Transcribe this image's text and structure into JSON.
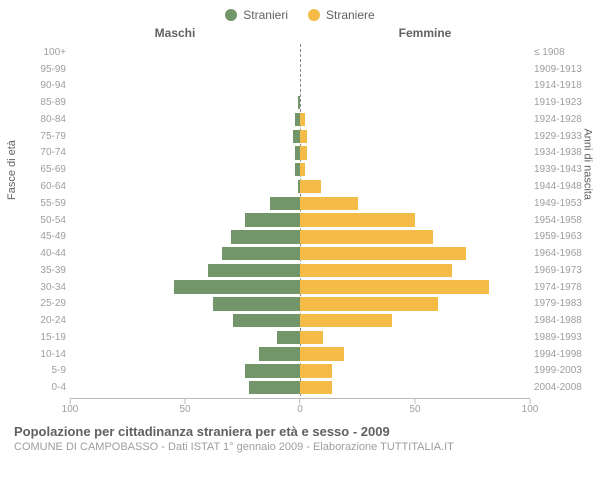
{
  "title": "Popolazione per cittadinanza straniera per età e sesso - 2009",
  "subtitle": "COMUNE DI CAMPOBASSO - Dati ISTAT 1° gennaio 2009 - Elaborazione TUTTITALIA.IT",
  "legend": {
    "male": {
      "label": "Stranieri",
      "color": "#72966a"
    },
    "female": {
      "label": "Straniere",
      "color": "#f4bb47"
    }
  },
  "headers": {
    "male": "Maschi",
    "female": "Femmine"
  },
  "y_axis_left_title": "Fasce di età",
  "y_axis_right_title": "Anni di nascita",
  "x_axis": {
    "max": 100,
    "ticks": [
      100,
      50,
      0,
      50,
      100
    ]
  },
  "chart": {
    "type": "population-pyramid",
    "background_color": "#ffffff",
    "axis_color": "#bbbbbb",
    "label_color": "#9e9e9e",
    "center_line_color": "#888888",
    "bar_height_ratio": 0.8,
    "rows": [
      {
        "age": "100+",
        "birth": "≤ 1908",
        "m": 0,
        "f": 0
      },
      {
        "age": "95-99",
        "birth": "1909-1913",
        "m": 0,
        "f": 0
      },
      {
        "age": "90-94",
        "birth": "1914-1918",
        "m": 0,
        "f": 0
      },
      {
        "age": "85-89",
        "birth": "1919-1923",
        "m": 1,
        "f": 0
      },
      {
        "age": "80-84",
        "birth": "1924-1928",
        "m": 2,
        "f": 2
      },
      {
        "age": "75-79",
        "birth": "1929-1933",
        "m": 3,
        "f": 3
      },
      {
        "age": "70-74",
        "birth": "1934-1938",
        "m": 2,
        "f": 3
      },
      {
        "age": "65-69",
        "birth": "1939-1943",
        "m": 2,
        "f": 2
      },
      {
        "age": "60-64",
        "birth": "1944-1948",
        "m": 1,
        "f": 9
      },
      {
        "age": "55-59",
        "birth": "1949-1953",
        "m": 13,
        "f": 25
      },
      {
        "age": "50-54",
        "birth": "1954-1958",
        "m": 24,
        "f": 50
      },
      {
        "age": "45-49",
        "birth": "1959-1963",
        "m": 30,
        "f": 58
      },
      {
        "age": "40-44",
        "birth": "1964-1968",
        "m": 34,
        "f": 72
      },
      {
        "age": "35-39",
        "birth": "1969-1973",
        "m": 40,
        "f": 66
      },
      {
        "age": "30-34",
        "birth": "1974-1978",
        "m": 55,
        "f": 82
      },
      {
        "age": "25-29",
        "birth": "1979-1983",
        "m": 38,
        "f": 60
      },
      {
        "age": "20-24",
        "birth": "1984-1988",
        "m": 29,
        "f": 40
      },
      {
        "age": "15-19",
        "birth": "1989-1993",
        "m": 10,
        "f": 10
      },
      {
        "age": "10-14",
        "birth": "1994-1998",
        "m": 18,
        "f": 19
      },
      {
        "age": "5-9",
        "birth": "1999-2003",
        "m": 24,
        "f": 14
      },
      {
        "age": "0-4",
        "birth": "2004-2008",
        "m": 22,
        "f": 14
      }
    ]
  }
}
